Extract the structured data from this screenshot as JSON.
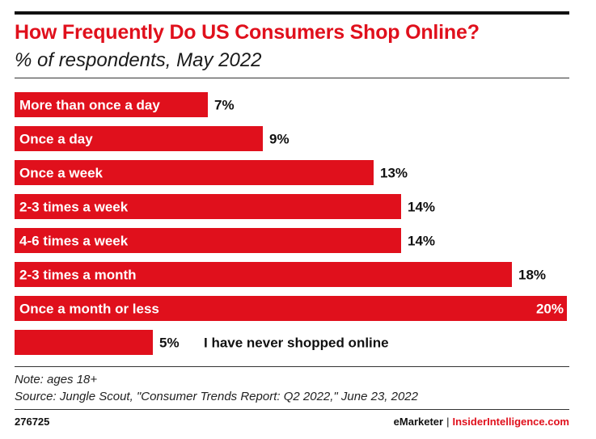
{
  "header": {
    "title": "How Frequently Do US Consumers Shop Online?",
    "subtitle": "% of respondents, May 2022"
  },
  "footer": {
    "note": "Note: ages 18+",
    "source": "Source: Jungle Scout, \"Consumer Trends Report: Q2 2022,\" June 23, 2022",
    "chart_id": "276725",
    "brand_emarketer": "eMarketer",
    "brand_separator": "|",
    "brand_insider": "InsiderIntelligence.com"
  },
  "colors": {
    "bar": "#e0101c",
    "accent": "#e0101c"
  },
  "chart_data": {
    "type": "bar",
    "orientation": "horizontal",
    "title": "How Frequently Do US Consumers Shop Online?",
    "subtitle": "% of respondents, May 2022",
    "categories": [
      "More than once a day",
      "Once a day",
      "Once a week",
      "2-3 times a week",
      "4-6 times a week",
      "2-3 times a month",
      "Once a month or less",
      "I have never shopped online"
    ],
    "values": [
      7,
      9,
      13,
      14,
      14,
      18,
      20,
      5
    ],
    "value_labels": [
      "7%",
      "9%",
      "13%",
      "14%",
      "14%",
      "18%",
      "20%",
      "5%"
    ],
    "xlim": [
      0,
      20
    ],
    "grid": false,
    "legend": "none"
  }
}
